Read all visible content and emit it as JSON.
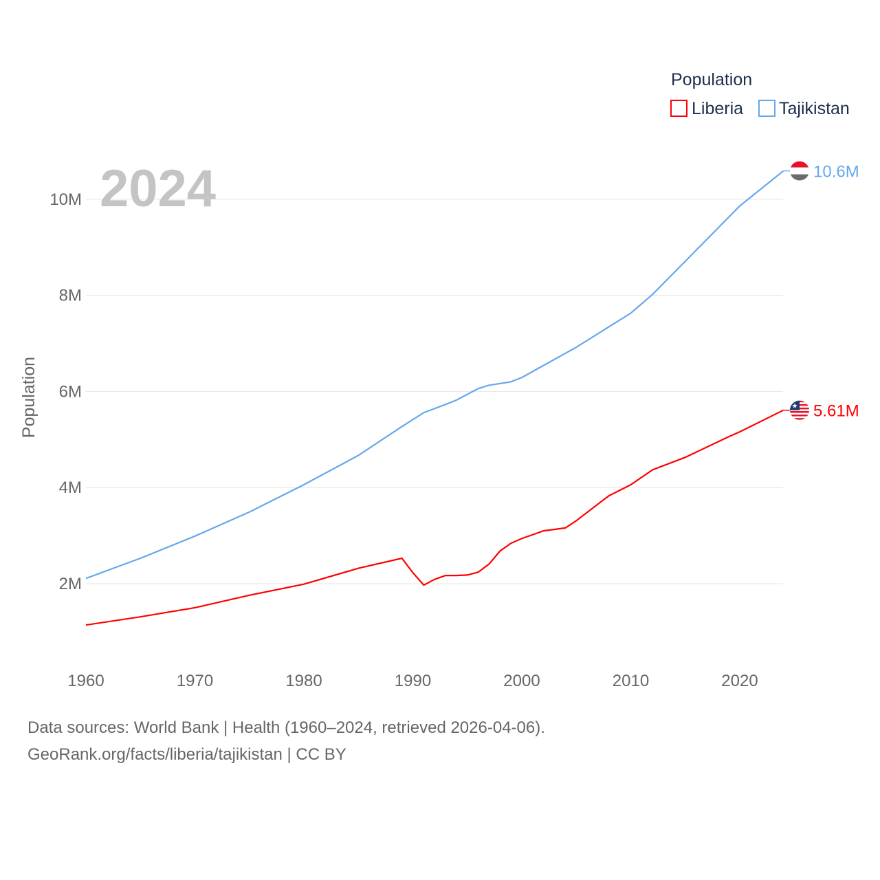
{
  "chart_data": {
    "type": "line",
    "title": "",
    "year_label": "2024",
    "xlabel": "",
    "ylabel": "Population",
    "xlim": [
      1960,
      2024
    ],
    "ylim": [
      0,
      10.6
    ],
    "x_ticks": [
      1960,
      1970,
      1980,
      1990,
      2000,
      2010,
      2020
    ],
    "x_tick_labels": [
      "1960",
      "1970",
      "1980",
      "1990",
      "2000",
      "2010",
      "2020"
    ],
    "y_ticks": [
      2,
      4,
      6,
      8,
      10
    ],
    "y_tick_labels": [
      "2M",
      "4M",
      "6M",
      "8M",
      "10M"
    ],
    "grid": true,
    "legend": {
      "title": "Population",
      "placement": "top-right"
    },
    "series": [
      {
        "name": "Liberia",
        "color": "#ff0000",
        "end_label": "5.61M",
        "points": [
          [
            1960,
            1.14
          ],
          [
            1965,
            1.31
          ],
          [
            1970,
            1.5
          ],
          [
            1975,
            1.76
          ],
          [
            1980,
            1.99
          ],
          [
            1985,
            2.32
          ],
          [
            1989,
            2.53
          ],
          [
            1990,
            2.23
          ],
          [
            1991,
            1.97
          ],
          [
            1992,
            2.09
          ],
          [
            1993,
            2.17
          ],
          [
            1994,
            2.17
          ],
          [
            1995,
            2.18
          ],
          [
            1996,
            2.24
          ],
          [
            1997,
            2.41
          ],
          [
            1998,
            2.68
          ],
          [
            1999,
            2.84
          ],
          [
            2000,
            2.94
          ],
          [
            2002,
            3.1
          ],
          [
            2004,
            3.16
          ],
          [
            2005,
            3.31
          ],
          [
            2007,
            3.66
          ],
          [
            2008,
            3.83
          ],
          [
            2010,
            4.06
          ],
          [
            2012,
            4.37
          ],
          [
            2015,
            4.63
          ],
          [
            2019,
            5.06
          ],
          [
            2020,
            5.16
          ],
          [
            2024,
            5.61
          ]
        ]
      },
      {
        "name": "Tajikistan",
        "color": "#64a8ec",
        "end_label": "10.6M",
        "points": [
          [
            1960,
            2.11
          ],
          [
            1965,
            2.53
          ],
          [
            1970,
            2.99
          ],
          [
            1975,
            3.49
          ],
          [
            1980,
            4.06
          ],
          [
            1985,
            4.67
          ],
          [
            1988,
            5.12
          ],
          [
            1989,
            5.27
          ],
          [
            1991,
            5.56
          ],
          [
            1993,
            5.73
          ],
          [
            1994,
            5.82
          ],
          [
            1996,
            6.06
          ],
          [
            1997,
            6.13
          ],
          [
            1999,
            6.2
          ],
          [
            2000,
            6.29
          ],
          [
            2005,
            6.92
          ],
          [
            2010,
            7.63
          ],
          [
            2012,
            8.02
          ],
          [
            2015,
            8.71
          ],
          [
            2020,
            9.86
          ],
          [
            2024,
            10.59
          ]
        ]
      }
    ]
  },
  "footer": {
    "line1": "Data sources: World Bank | Health (1960–2024, retrieved 2026-04-06).",
    "line2": "GeoRank.org/facts/liberia/tajikistan | CC BY"
  }
}
